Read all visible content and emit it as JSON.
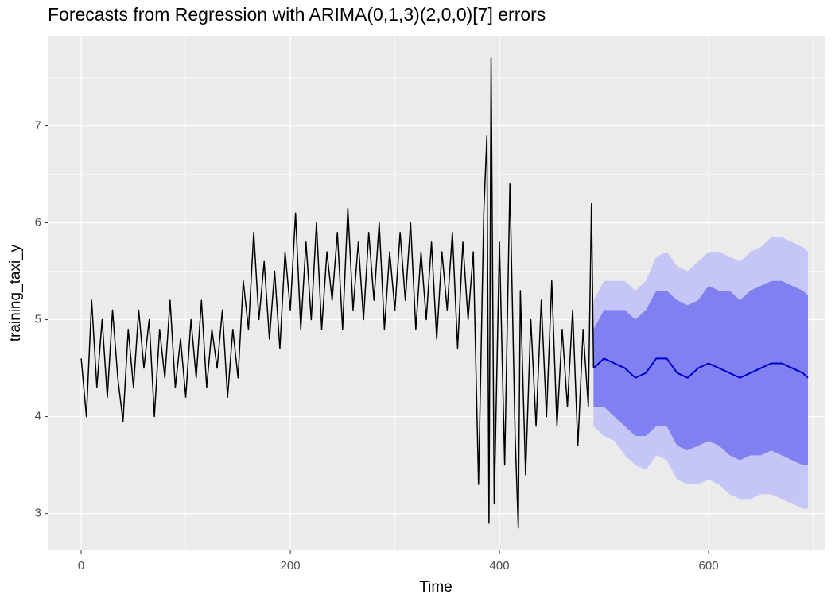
{
  "chart_data": {
    "type": "line",
    "title": "Forecasts from Regression with ARIMA(0,1,3)(2,0,0)[7] errors",
    "xlabel": "Time",
    "ylabel": "training_taxi_y",
    "xlim": [
      -32,
      711
    ],
    "ylim": [
      2.62,
      7.93
    ],
    "xticks": [
      0,
      200,
      400,
      600
    ],
    "yticks": [
      3,
      4,
      5,
      6,
      7
    ],
    "grid": true,
    "x": [
      0,
      5,
      10,
      15,
      20,
      25,
      30,
      35,
      40,
      45,
      50,
      55,
      60,
      65,
      70,
      75,
      80,
      85,
      90,
      95,
      100,
      105,
      110,
      115,
      120,
      125,
      130,
      135,
      140,
      145,
      150,
      155,
      160,
      165,
      170,
      175,
      180,
      185,
      190,
      195,
      200,
      205,
      210,
      215,
      220,
      225,
      230,
      235,
      240,
      245,
      250,
      255,
      260,
      265,
      270,
      275,
      280,
      285,
      290,
      295,
      300,
      305,
      310,
      315,
      320,
      325,
      330,
      335,
      340,
      345,
      350,
      355,
      360,
      365,
      370,
      375,
      380,
      385,
      388,
      390,
      392,
      395,
      400,
      405,
      410,
      415,
      418,
      420,
      425,
      430,
      435,
      440,
      445,
      450,
      455,
      460,
      465,
      470,
      475,
      480,
      485,
      488,
      490
    ],
    "series": [
      {
        "color": "#000000",
        "values": [
          4.6,
          4.0,
          5.2,
          4.3,
          5.0,
          4.2,
          5.1,
          4.4,
          3.95,
          4.9,
          4.3,
          5.1,
          4.5,
          5.0,
          4.0,
          4.9,
          4.4,
          5.2,
          4.3,
          4.8,
          4.2,
          5.0,
          4.4,
          5.2,
          4.3,
          4.9,
          4.5,
          5.1,
          4.2,
          4.9,
          4.4,
          5.4,
          4.9,
          5.9,
          5.0,
          5.6,
          4.8,
          5.5,
          4.7,
          5.7,
          5.1,
          6.1,
          4.9,
          5.8,
          5.0,
          6.0,
          4.9,
          5.7,
          5.2,
          5.9,
          4.9,
          6.15,
          5.1,
          5.8,
          5.0,
          5.9,
          5.2,
          6.0,
          4.9,
          5.7,
          5.1,
          5.9,
          5.2,
          6.0,
          4.9,
          5.7,
          5.0,
          5.8,
          4.8,
          5.7,
          5.1,
          5.9,
          4.7,
          5.8,
          5.0,
          5.7,
          3.3,
          6.1,
          6.9,
          2.9,
          7.7,
          3.1,
          5.8,
          3.5,
          6.4,
          3.8,
          2.85,
          5.3,
          3.4,
          5.0,
          3.9,
          5.2,
          4.0,
          5.4,
          3.9,
          4.9,
          4.1,
          5.1,
          3.7,
          4.9,
          4.1,
          6.2,
          4.5
        ]
      }
    ],
    "forecast": {
      "x": [
        490,
        500,
        510,
        520,
        530,
        540,
        550,
        560,
        570,
        580,
        590,
        600,
        610,
        620,
        630,
        640,
        650,
        660,
        670,
        680,
        690,
        695
      ],
      "bands": [
        {
          "color": "#c6c6f6",
          "lower": [
            3.9,
            3.8,
            3.75,
            3.6,
            3.5,
            3.45,
            3.6,
            3.55,
            3.35,
            3.3,
            3.3,
            3.35,
            3.3,
            3.2,
            3.15,
            3.15,
            3.2,
            3.2,
            3.15,
            3.1,
            3.05,
            3.05
          ],
          "upper": [
            5.2,
            5.4,
            5.4,
            5.4,
            5.3,
            5.4,
            5.65,
            5.7,
            5.55,
            5.5,
            5.6,
            5.7,
            5.7,
            5.65,
            5.6,
            5.7,
            5.75,
            5.85,
            5.85,
            5.8,
            5.75,
            5.7
          ]
        },
        {
          "color": "#8080f0",
          "lower": [
            4.1,
            4.1,
            4.0,
            3.9,
            3.8,
            3.8,
            3.9,
            3.9,
            3.7,
            3.65,
            3.7,
            3.75,
            3.7,
            3.6,
            3.55,
            3.6,
            3.6,
            3.65,
            3.6,
            3.55,
            3.5,
            3.5
          ],
          "upper": [
            4.9,
            5.1,
            5.1,
            5.1,
            5.0,
            5.1,
            5.3,
            5.3,
            5.2,
            5.15,
            5.2,
            5.35,
            5.3,
            5.3,
            5.2,
            5.3,
            5.35,
            5.4,
            5.4,
            5.35,
            5.3,
            5.25
          ]
        }
      ],
      "series": [
        {
          "color": "#0000cc",
          "values": [
            4.5,
            4.6,
            4.55,
            4.5,
            4.4,
            4.45,
            4.6,
            4.6,
            4.45,
            4.4,
            4.5,
            4.55,
            4.5,
            4.45,
            4.4,
            4.45,
            4.5,
            4.55,
            4.55,
            4.5,
            4.45,
            4.4
          ]
        }
      ]
    }
  }
}
